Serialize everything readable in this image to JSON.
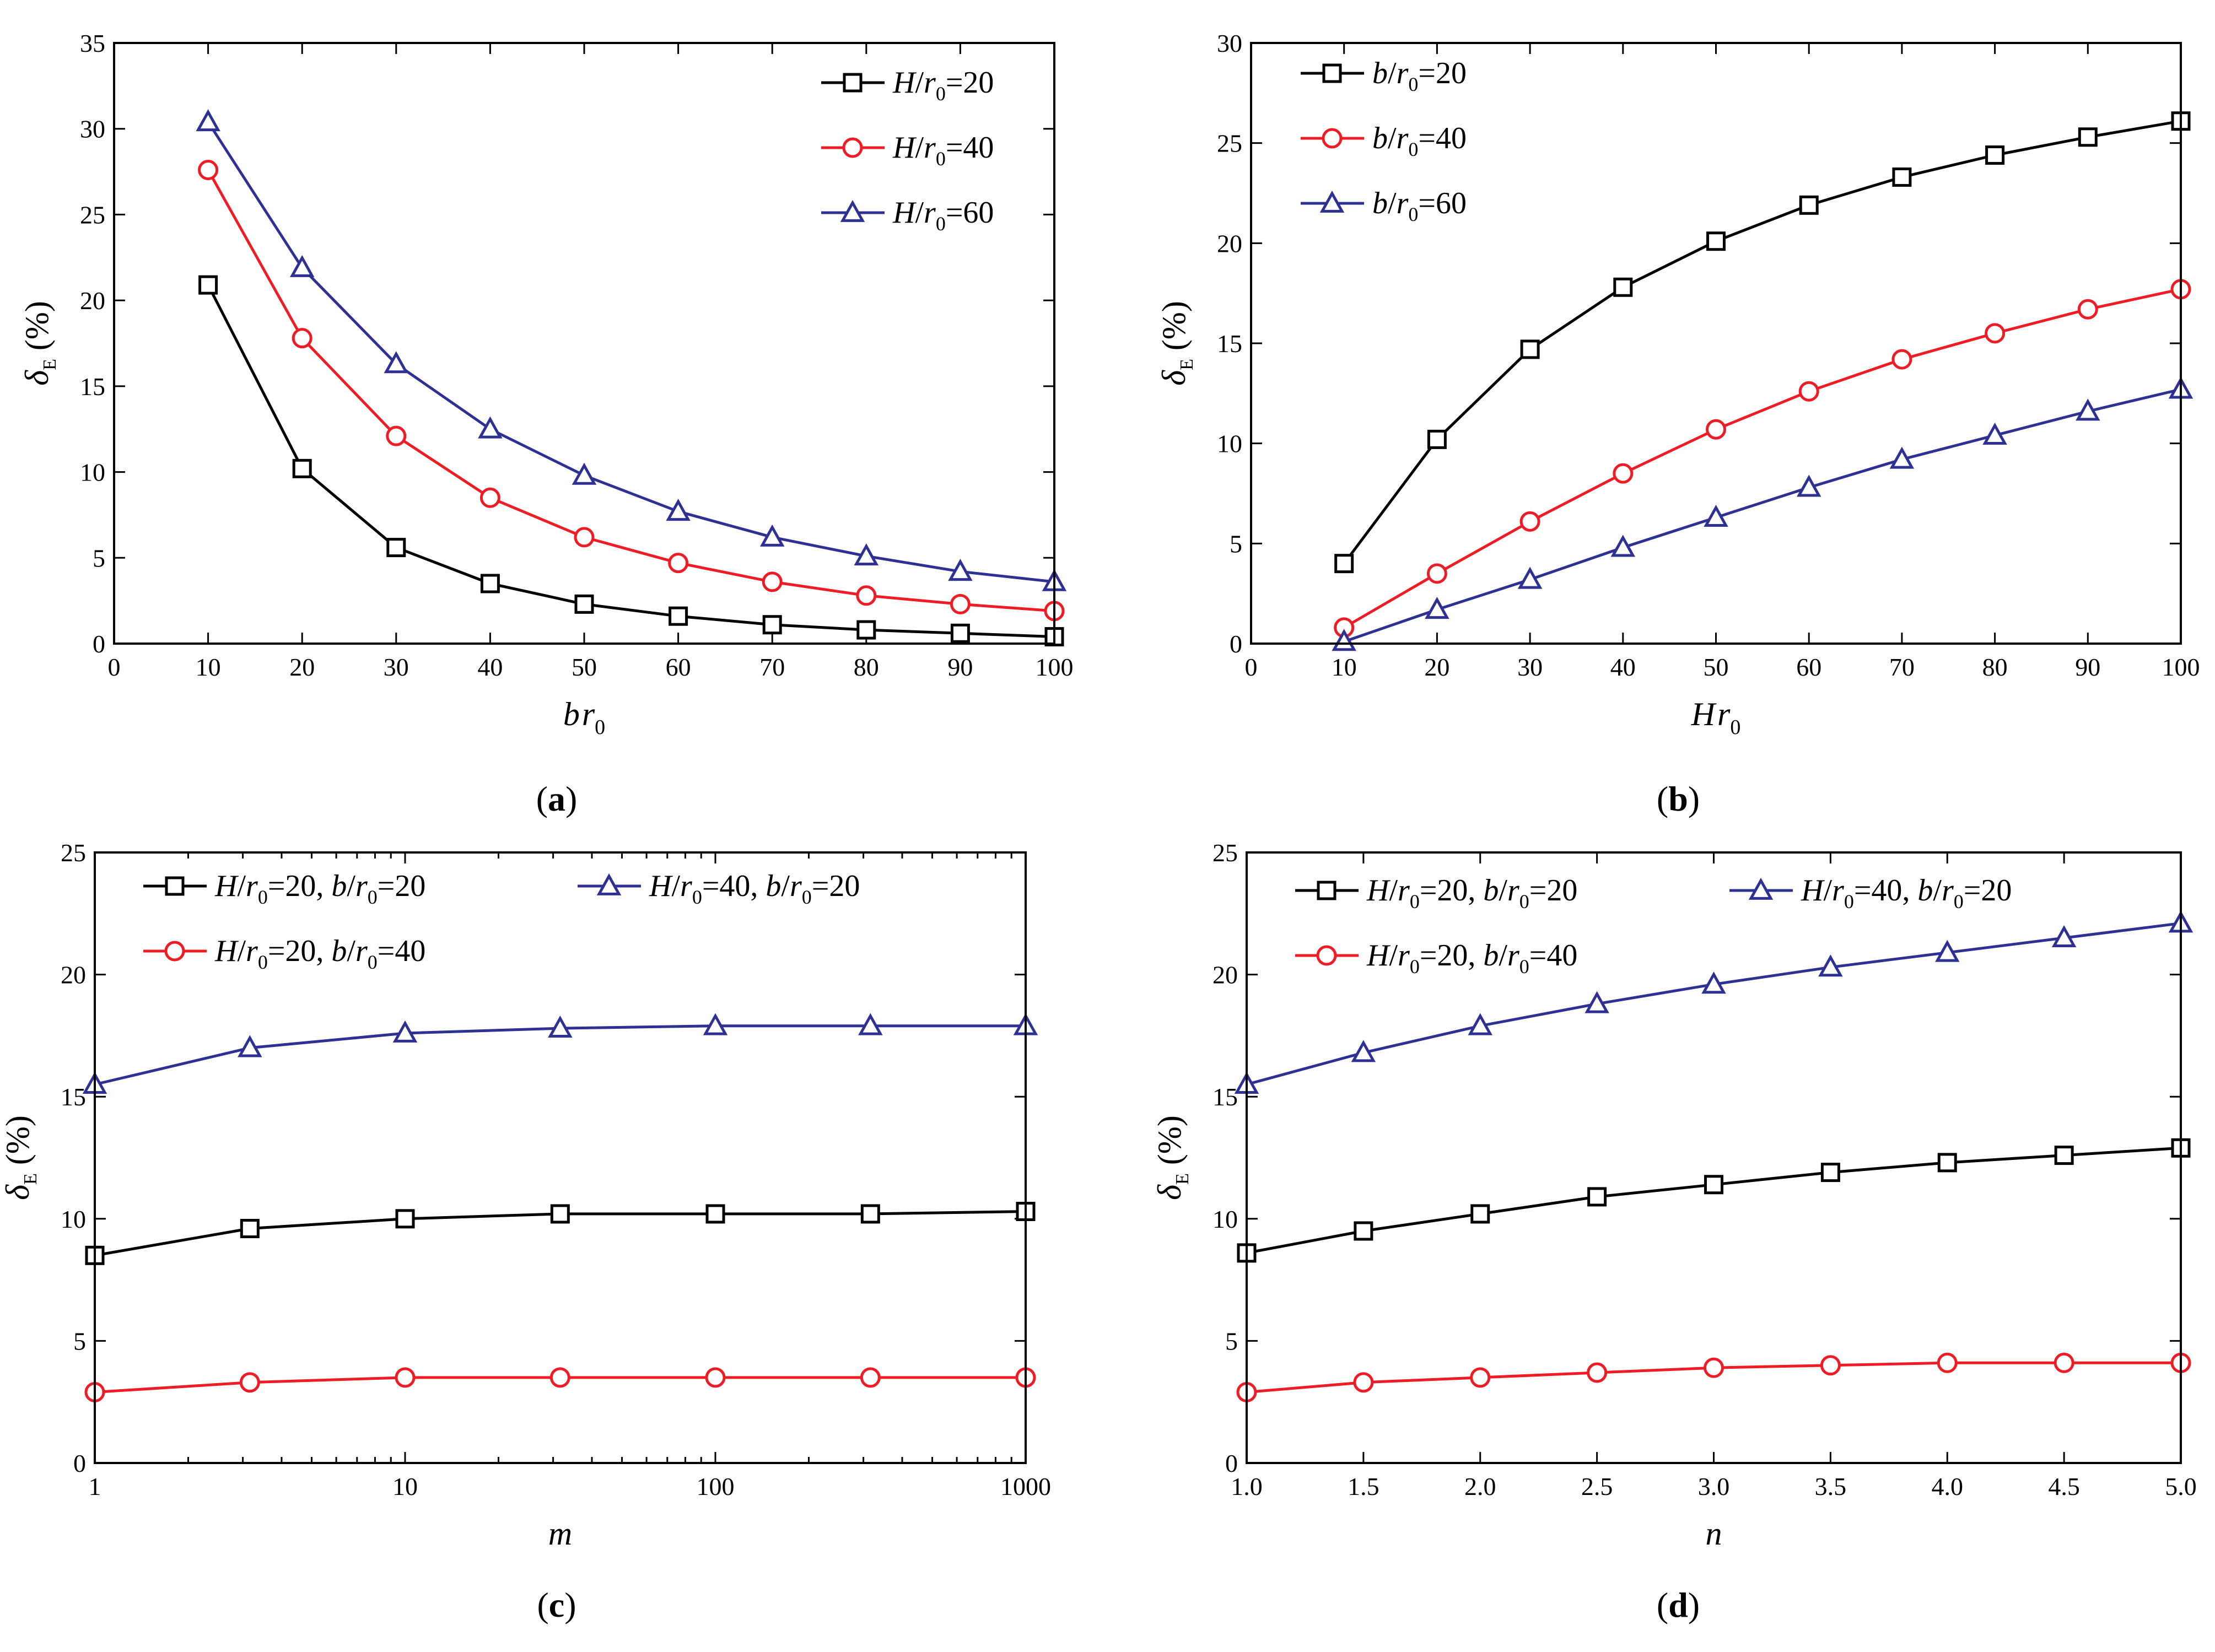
{
  "figure": {
    "colors": {
      "black": "#000000",
      "red": "#ee1c24",
      "blue": "#2e3192"
    }
  },
  "chart_data": [
    {
      "panel": "a",
      "caption": {
        "open": "(",
        "letter": "a",
        "close": ")"
      },
      "type": "line",
      "xlabel": {
        "v1": "b",
        "v2": "r",
        "sub": "0"
      },
      "ylabel": {
        "sym": "δ",
        "sub": "E",
        "unit": " (%)"
      },
      "xscale": "linear",
      "xlim": [
        0,
        100
      ],
      "ylim": [
        0,
        35
      ],
      "xticks": [
        0,
        10,
        20,
        30,
        40,
        50,
        60,
        70,
        80,
        90,
        100
      ],
      "yticks": [
        0,
        5,
        10,
        15,
        20,
        25,
        30,
        35
      ],
      "xtick_labels": [
        "0",
        "10",
        "20",
        "30",
        "40",
        "50",
        "60",
        "70",
        "80",
        "90",
        "100"
      ],
      "ytick_labels": [
        "0",
        "5",
        "10",
        "15",
        "20",
        "25",
        "30",
        "35"
      ],
      "legend_position": "top-right",
      "legend_layout": [
        [
          "s1"
        ],
        [
          "s2"
        ],
        [
          "s3"
        ]
      ],
      "x": [
        10,
        20,
        30,
        40,
        50,
        60,
        70,
        80,
        90,
        100
      ],
      "series": [
        {
          "id": "s1",
          "color": "black",
          "marker": "square",
          "label": [
            {
              "t": "H",
              "i": true
            },
            {
              "t": "/"
            },
            {
              "t": "r",
              "i": true
            },
            {
              "t": "0",
              "sub": true
            },
            {
              "t": "=20"
            }
          ],
          "values": [
            20.9,
            10.2,
            5.6,
            3.5,
            2.3,
            1.6,
            1.1,
            0.8,
            0.6,
            0.4
          ]
        },
        {
          "id": "s2",
          "color": "red",
          "marker": "circle",
          "label": [
            {
              "t": "H",
              "i": true
            },
            {
              "t": "/"
            },
            {
              "t": "r",
              "i": true
            },
            {
              "t": "0",
              "sub": true
            },
            {
              "t": "=40"
            }
          ],
          "values": [
            27.6,
            17.8,
            12.1,
            8.5,
            6.2,
            4.7,
            3.6,
            2.8,
            2.3,
            1.9
          ]
        },
        {
          "id": "s3",
          "color": "blue",
          "marker": "triangle",
          "label": [
            {
              "t": "H",
              "i": true
            },
            {
              "t": "/"
            },
            {
              "t": "r",
              "i": true
            },
            {
              "t": "0",
              "sub": true
            },
            {
              "t": "=60"
            }
          ],
          "values": [
            30.4,
            21.9,
            16.3,
            12.5,
            9.8,
            7.7,
            6.2,
            5.1,
            4.2,
            3.6
          ]
        }
      ]
    },
    {
      "panel": "b",
      "caption": {
        "open": "(",
        "letter": "b",
        "close": ")"
      },
      "type": "line",
      "xlabel": {
        "v1": "H",
        "v2": "r",
        "sub": "0"
      },
      "ylabel": {
        "sym": "δ",
        "sub": "E",
        "unit": " (%)"
      },
      "xscale": "linear",
      "xlim": [
        0,
        100
      ],
      "ylim": [
        0,
        30
      ],
      "xticks": [
        0,
        10,
        20,
        30,
        40,
        50,
        60,
        70,
        80,
        90,
        100
      ],
      "yticks": [
        0,
        5,
        10,
        15,
        20,
        25,
        30
      ],
      "xtick_labels": [
        "0",
        "10",
        "20",
        "30",
        "40",
        "50",
        "60",
        "70",
        "80",
        "90",
        "100"
      ],
      "ytick_labels": [
        "0",
        "5",
        "10",
        "15",
        "20",
        "25",
        "30"
      ],
      "legend_position": "top-left",
      "legend_layout": [
        [
          "s1"
        ],
        [
          "s2"
        ],
        [
          "s3"
        ]
      ],
      "x": [
        10,
        20,
        30,
        40,
        50,
        60,
        70,
        80,
        90,
        100
      ],
      "series": [
        {
          "id": "s1",
          "color": "black",
          "marker": "square",
          "label": [
            {
              "t": "b",
              "i": true
            },
            {
              "t": "/"
            },
            {
              "t": "r",
              "i": true
            },
            {
              "t": "0",
              "sub": true
            },
            {
              "t": "=20"
            }
          ],
          "values": [
            4.0,
            10.2,
            14.7,
            17.8,
            20.1,
            21.9,
            23.3,
            24.4,
            25.3,
            26.1
          ]
        },
        {
          "id": "s2",
          "color": "red",
          "marker": "circle",
          "label": [
            {
              "t": "b",
              "i": true
            },
            {
              "t": "/"
            },
            {
              "t": "r",
              "i": true
            },
            {
              "t": "0",
              "sub": true
            },
            {
              "t": "=40"
            }
          ],
          "values": [
            0.8,
            3.5,
            6.1,
            8.5,
            10.7,
            12.6,
            14.2,
            15.5,
            16.7,
            17.7
          ]
        },
        {
          "id": "s3",
          "color": "blue",
          "marker": "triangle",
          "label": [
            {
              "t": "b",
              "i": true
            },
            {
              "t": "/"
            },
            {
              "t": "r",
              "i": true
            },
            {
              "t": "0",
              "sub": true
            },
            {
              "t": "=60"
            }
          ],
          "values": [
            0.1,
            1.7,
            3.2,
            4.8,
            6.3,
            7.8,
            9.2,
            10.4,
            11.6,
            12.7
          ]
        }
      ]
    },
    {
      "panel": "c",
      "caption": {
        "open": "(",
        "letter": "c",
        "close": ")"
      },
      "type": "line",
      "xlabel": {
        "v1": "m"
      },
      "ylabel": {
        "sym": "δ",
        "sub": "E",
        "unit": " (%)"
      },
      "xscale": "log",
      "xlim": [
        1,
        1000
      ],
      "ylim": [
        0,
        25
      ],
      "xticks": [
        1,
        10,
        100,
        1000
      ],
      "yticks": [
        0,
        5,
        10,
        15,
        20,
        25
      ],
      "xtick_labels": [
        "1",
        "10",
        "100",
        "1000"
      ],
      "ytick_labels": [
        "0",
        "5",
        "10",
        "15",
        "20",
        "25"
      ],
      "legend_position": "top",
      "legend_layout": [
        [
          "s1",
          "s3"
        ],
        [
          "s2"
        ]
      ],
      "x": [
        1,
        3.16,
        10,
        31.6,
        100,
        316,
        1000
      ],
      "series": [
        {
          "id": "s1",
          "color": "black",
          "marker": "square",
          "label": [
            {
              "t": "H",
              "i": true
            },
            {
              "t": "/"
            },
            {
              "t": "r",
              "i": true
            },
            {
              "t": "0",
              "sub": true
            },
            {
              "t": "=20, "
            },
            {
              "t": "b",
              "i": true
            },
            {
              "t": "/"
            },
            {
              "t": "r",
              "i": true
            },
            {
              "t": "0",
              "sub": true
            },
            {
              "t": "=20"
            }
          ],
          "values": [
            8.5,
            9.6,
            10.0,
            10.2,
            10.2,
            10.2,
            10.3
          ]
        },
        {
          "id": "s2",
          "color": "red",
          "marker": "circle",
          "label": [
            {
              "t": "H",
              "i": true
            },
            {
              "t": "/"
            },
            {
              "t": "r",
              "i": true
            },
            {
              "t": "0",
              "sub": true
            },
            {
              "t": "=20, "
            },
            {
              "t": "b",
              "i": true
            },
            {
              "t": "/"
            },
            {
              "t": "r",
              "i": true
            },
            {
              "t": "0",
              "sub": true
            },
            {
              "t": "=40"
            }
          ],
          "values": [
            2.9,
            3.3,
            3.5,
            3.5,
            3.5,
            3.5,
            3.5
          ]
        },
        {
          "id": "s3",
          "color": "blue",
          "marker": "triangle",
          "label": [
            {
              "t": "H",
              "i": true
            },
            {
              "t": "/"
            },
            {
              "t": "r",
              "i": true
            },
            {
              "t": "0",
              "sub": true
            },
            {
              "t": "=40, "
            },
            {
              "t": "b",
              "i": true
            },
            {
              "t": "/"
            },
            {
              "t": "r",
              "i": true
            },
            {
              "t": "0",
              "sub": true
            },
            {
              "t": "=20"
            }
          ],
          "values": [
            15.5,
            17.0,
            17.6,
            17.8,
            17.9,
            17.9,
            17.9
          ]
        }
      ]
    },
    {
      "panel": "d",
      "caption": {
        "open": "(",
        "letter": "d",
        "close": ")"
      },
      "type": "line",
      "xlabel": {
        "v1": "n"
      },
      "ylabel": {
        "sym": "δ",
        "sub": "E",
        "unit": " (%)"
      },
      "xscale": "linear",
      "xlim": [
        1.0,
        5.0
      ],
      "ylim": [
        0,
        25
      ],
      "xticks": [
        1.0,
        1.5,
        2.0,
        2.5,
        3.0,
        3.5,
        4.0,
        4.5,
        5.0
      ],
      "yticks": [
        0,
        5,
        10,
        15,
        20,
        25
      ],
      "xtick_labels": [
        "1.0",
        "1.5",
        "2.0",
        "2.5",
        "3.0",
        "3.5",
        "4.0",
        "4.5",
        "5.0"
      ],
      "ytick_labels": [
        "0",
        "5",
        "10",
        "15",
        "20",
        "25"
      ],
      "legend_position": "top",
      "legend_layout": [
        [
          "s1",
          "s3"
        ],
        [
          "s2"
        ]
      ],
      "x": [
        1.0,
        1.5,
        2.0,
        2.5,
        3.0,
        3.5,
        4.0,
        4.5,
        5.0
      ],
      "series": [
        {
          "id": "s1",
          "color": "black",
          "marker": "square",
          "label": [
            {
              "t": "H",
              "i": true
            },
            {
              "t": "/"
            },
            {
              "t": "r",
              "i": true
            },
            {
              "t": "0",
              "sub": true
            },
            {
              "t": "=20, "
            },
            {
              "t": "b",
              "i": true
            },
            {
              "t": "/"
            },
            {
              "t": "r",
              "i": true
            },
            {
              "t": "0",
              "sub": true
            },
            {
              "t": "=20"
            }
          ],
          "values": [
            8.6,
            9.5,
            10.2,
            10.9,
            11.4,
            11.9,
            12.3,
            12.6,
            12.9
          ]
        },
        {
          "id": "s2",
          "color": "red",
          "marker": "circle",
          "label": [
            {
              "t": "H",
              "i": true
            },
            {
              "t": "/"
            },
            {
              "t": "r",
              "i": true
            },
            {
              "t": "0",
              "sub": true
            },
            {
              "t": "=20, "
            },
            {
              "t": "b",
              "i": true
            },
            {
              "t": "/"
            },
            {
              "t": "r",
              "i": true
            },
            {
              "t": "0",
              "sub": true
            },
            {
              "t": "=40"
            }
          ],
          "values": [
            2.9,
            3.3,
            3.5,
            3.7,
            3.9,
            4.0,
            4.1,
            4.1,
            4.1
          ]
        },
        {
          "id": "s3",
          "color": "blue",
          "marker": "triangle",
          "label": [
            {
              "t": "H",
              "i": true
            },
            {
              "t": "/"
            },
            {
              "t": "r",
              "i": true
            },
            {
              "t": "0",
              "sub": true
            },
            {
              "t": "=40, "
            },
            {
              "t": "b",
              "i": true
            },
            {
              "t": "/"
            },
            {
              "t": "r",
              "i": true
            },
            {
              "t": "0",
              "sub": true
            },
            {
              "t": "=20"
            }
          ],
          "values": [
            15.5,
            16.8,
            17.9,
            18.8,
            19.6,
            20.3,
            20.9,
            21.5,
            22.1
          ]
        }
      ]
    }
  ]
}
